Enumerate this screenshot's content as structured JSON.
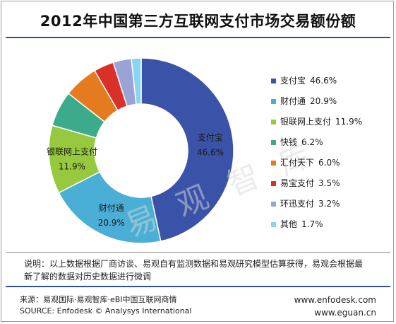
{
  "chart_data": {
    "type": "pie",
    "title": "2012年中国第三方互联网支付市场交易额份额",
    "donut": true,
    "legend_position": "right",
    "unit": "%",
    "series": [
      {
        "name": "支付宝",
        "value": 46.6,
        "label": "46.6%",
        "color": "#3a53a8",
        "inner_label": "支付宝"
      },
      {
        "name": "财付通",
        "value": 20.9,
        "label": "20.9%",
        "color": "#4aaed6",
        "inner_label": "财付通"
      },
      {
        "name": "银联网上支付",
        "value": 11.9,
        "label": "11.9%",
        "color": "#96c93d",
        "inner_label": "银联网上支付"
      },
      {
        "name": "快钱",
        "value": 6.2,
        "label": "6.2%",
        "color": "#3cab8c",
        "inner_label": ""
      },
      {
        "name": "汇付天下",
        "value": 6.0,
        "label": "6.0%",
        "color": "#e67a1e",
        "inner_label": ""
      },
      {
        "name": "易宝支付",
        "value": 3.5,
        "label": "3.5%",
        "color": "#d9302a",
        "inner_label": ""
      },
      {
        "name": "环迅支付",
        "value": 3.2,
        "label": "3.2%",
        "color": "#9aa3d6",
        "inner_label": ""
      },
      {
        "name": "其他",
        "value": 1.7,
        "label": "1.7%",
        "color": "#8ad4ef",
        "inner_label": ""
      }
    ]
  },
  "watermark": "易 观 智 库",
  "note": "说明：以上数据根据厂商访谈、易观自有监测数据和易观研究模型估算获得，易观会根据最新了解的数据对历史数据进行微调",
  "source_cn": "来源：易观国际·易观智库·eBI中国互联网商情",
  "source_en": "SOURCE: Enfodesk © Analysys International",
  "site_1": "www.enfodesk.com",
  "site_2": "www.eguan.cn"
}
